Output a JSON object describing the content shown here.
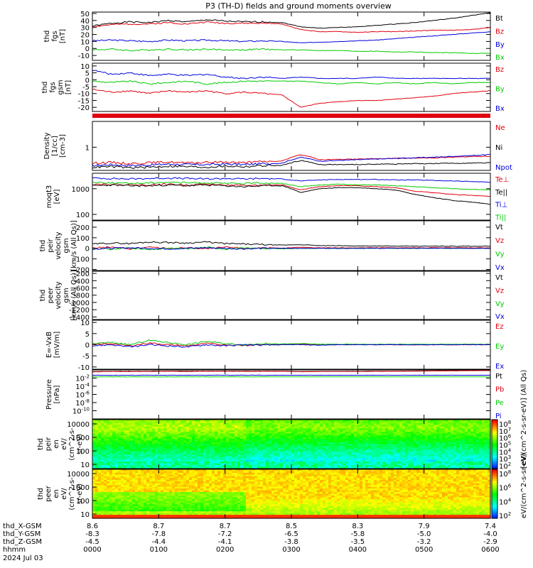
{
  "title": "P3 (TH-D) fields and ground moments overview",
  "colors": {
    "black": "#000000",
    "red": "#e0000e",
    "green": "#00cc00",
    "blue": "#0000dd"
  },
  "chart_data": [
    {
      "id": "fgs",
      "type": "line",
      "ylabel": [
        "thd",
        "fgs",
        "[nT]"
      ],
      "ylim": [
        -17,
        52
      ],
      "yticks": [
        50,
        40,
        30,
        20,
        10,
        0,
        -10
      ],
      "series": [
        {
          "name": "Bt",
          "color": "black",
          "values": [
            32,
            36,
            38,
            37,
            40,
            38,
            41,
            39,
            38,
            38,
            37,
            31,
            29,
            30,
            31,
            33,
            35,
            37,
            40,
            43,
            47,
            51
          ]
        },
        {
          "name": "Bz",
          "color": "red",
          "values": [
            31,
            34,
            35,
            35,
            37,
            35,
            38,
            36,
            36,
            36,
            35,
            27,
            24,
            24,
            23,
            24,
            24,
            25,
            26,
            26,
            27,
            30
          ]
        },
        {
          "name": "By",
          "color": "blue",
          "values": [
            11,
            12,
            11,
            10,
            12,
            11,
            12,
            11,
            10,
            11,
            10,
            8,
            9,
            10,
            11,
            12,
            14,
            16,
            18,
            20,
            22,
            24
          ]
        },
        {
          "name": "Bx",
          "color": "green",
          "values": [
            -2,
            -1,
            -3,
            -2,
            -1,
            -2,
            -1,
            -2,
            -2,
            -1,
            -2,
            -2,
            -3,
            -3,
            -4,
            -4,
            -5,
            -5,
            -6,
            -6,
            -7,
            -7
          ]
        }
      ]
    },
    {
      "id": "fgs-gsm",
      "type": "line",
      "ylabel": [
        "thd",
        "fgs",
        "gsm",
        "[nT]"
      ],
      "ylim": [
        -23,
        12
      ],
      "yticks": [
        10,
        5,
        0,
        -5,
        -10,
        -15,
        -20
      ],
      "series": [
        {
          "name": "Bz",
          "color": "red",
          "values": [
            -7,
            -9,
            -8,
            -10,
            -8,
            -9,
            -8,
            -10,
            -9,
            -10,
            -11,
            -20,
            -17,
            -16,
            -15,
            -15,
            -14,
            -13,
            -12,
            -10,
            -9,
            -8
          ]
        },
        {
          "name": "By",
          "color": "green",
          "values": [
            -1,
            -2,
            -1,
            -3,
            -2,
            -1,
            -3,
            -2,
            -1,
            -1,
            -1,
            -1,
            -2,
            -3,
            -2,
            -3,
            -2,
            -3,
            -2,
            -3,
            -2,
            -2
          ]
        },
        {
          "name": "Bx",
          "color": "blue",
          "values": [
            7,
            4,
            5,
            3,
            4,
            3,
            4,
            2,
            1,
            2,
            1,
            2,
            1,
            1,
            1,
            2,
            1,
            1,
            1,
            1,
            1,
            1
          ]
        }
      ]
    },
    {
      "id": "density",
      "type": "line",
      "ylabel": [
        "Density",
        "[1/cc]",
        "[cm-3]"
      ],
      "ylim": [
        0.2,
        6
      ],
      "yticks": [
        1
      ],
      "log": true,
      "series": [
        {
          "name": "Ne",
          "color": "red",
          "values": [
            0.33,
            0.35,
            0.32,
            0.34,
            0.36,
            0.33,
            0.35,
            0.36,
            0.34,
            0.37,
            0.38,
            0.6,
            0.42,
            0.43,
            0.44,
            0.45,
            0.46,
            0.47,
            0.48,
            0.5,
            0.52,
            0.54
          ]
        },
        {
          "name": "Ni",
          "color": "black",
          "values": [
            0.25,
            0.26,
            0.24,
            0.25,
            0.27,
            0.26,
            0.25,
            0.27,
            0.26,
            0.28,
            0.28,
            0.4,
            0.3,
            0.3,
            0.3,
            0.31,
            0.31,
            0.32,
            0.32,
            0.33,
            0.33,
            0.34
          ]
        },
        {
          "name": "Npot",
          "color": "blue",
          "values": [
            0.28,
            0.3,
            0.28,
            0.29,
            0.31,
            0.3,
            0.3,
            0.31,
            0.3,
            0.32,
            0.33,
            0.5,
            0.38,
            0.4,
            0.42,
            0.44,
            0.46,
            0.48,
            0.5,
            0.53,
            0.56,
            0.6
          ]
        }
      ]
    },
    {
      "id": "temperature",
      "type": "line",
      "ylabel": [
        "moqt3",
        "[eV]"
      ],
      "ylim": [
        60,
        4000
      ],
      "yticks": [
        1000,
        100
      ],
      "log": true,
      "series": [
        {
          "name": "Te⊥",
          "color": "red",
          "values": [
            1500,
            1500,
            1400,
            1400,
            1500,
            1400,
            1500,
            1400,
            1300,
            1400,
            1400,
            900,
            1200,
            1300,
            1300,
            1200,
            1100,
            800,
            700,
            600,
            550,
            500
          ]
        },
        {
          "name": "Te||",
          "color": "black",
          "values": [
            1300,
            1400,
            1300,
            1300,
            1400,
            1300,
            1400,
            1300,
            1200,
            1300,
            1300,
            700,
            1000,
            1100,
            1100,
            1000,
            900,
            600,
            450,
            350,
            300,
            250
          ]
        },
        {
          "name": "Ti⊥",
          "color": "blue",
          "values": [
            2600,
            2500,
            2400,
            2500,
            2600,
            2500,
            2400,
            2500,
            2400,
            2500,
            2400,
            2000,
            2200,
            2300,
            2300,
            2300,
            2200,
            2200,
            2100,
            2000,
            1900,
            1800
          ]
        },
        {
          "name": "Ti||",
          "color": "green",
          "values": [
            1800,
            1700,
            1600,
            1700,
            1800,
            1700,
            1700,
            1600,
            1600,
            1700,
            1600,
            1200,
            1400,
            1500,
            1400,
            1400,
            1300,
            1200,
            1100,
            1000,
            950,
            900
          ]
        }
      ]
    },
    {
      "id": "peir-velocity",
      "type": "line",
      "ylabel": [
        "thd",
        "peir",
        "velocity",
        "gsm",
        "[km/s (All Qs)]"
      ],
      "ylim": [
        -210,
        260
      ],
      "yticks": [
        200,
        100,
        0,
        -100,
        -200
      ],
      "series": [
        {
          "name": "Vt",
          "color": "black",
          "values": [
            40,
            50,
            45,
            60,
            55,
            50,
            60,
            45,
            40,
            35,
            30,
            35,
            25,
            25,
            22,
            22,
            20,
            20,
            20,
            20,
            20,
            20
          ]
        },
        {
          "name": "Vz",
          "color": "red",
          "values": [
            5,
            10,
            -5,
            10,
            0,
            5,
            -5,
            10,
            0,
            5,
            0,
            10,
            5,
            5,
            5,
            5,
            5,
            5,
            5,
            5,
            5,
            5
          ]
        },
        {
          "name": "Vy",
          "color": "green",
          "values": [
            0,
            -10,
            5,
            -15,
            0,
            -5,
            10,
            -5,
            0,
            0,
            -5,
            0,
            0,
            0,
            0,
            0,
            0,
            0,
            0,
            0,
            0,
            0
          ]
        },
        {
          "name": "Vx",
          "color": "blue",
          "values": [
            -5,
            0,
            5,
            0,
            -5,
            0,
            5,
            0,
            -5,
            0,
            0,
            0,
            0,
            0,
            0,
            0,
            0,
            0,
            0,
            0,
            0,
            0
          ]
        }
      ]
    },
    {
      "id": "peer-velocity",
      "type": "line",
      "ylabel": [
        "thd",
        "peer",
        "velocity",
        "gsm",
        "[km/s (All Qs)]"
      ],
      "ylim": [
        -1470,
        -140
      ],
      "yticks": [
        -200,
        -400,
        -600,
        -800,
        -1000,
        -1200,
        -1400
      ],
      "series": [
        {
          "name": "Vt",
          "color": "black",
          "values": []
        },
        {
          "name": "Vz",
          "color": "red",
          "values": []
        },
        {
          "name": "Vy",
          "color": "green",
          "values": []
        },
        {
          "name": "Vx",
          "color": "blue",
          "values": []
        }
      ]
    },
    {
      "id": "efield",
      "type": "line",
      "ylabel": [
        "E=-VxB",
        "[mV/m]"
      ],
      "ylim": [
        -11,
        11
      ],
      "yticks": [
        10,
        5,
        0,
        -5,
        -10
      ],
      "series": [
        {
          "name": "Ez",
          "color": "red",
          "values": [
            0,
            0.5,
            -0.5,
            0.8,
            0,
            -0.5,
            0.5,
            0,
            -0.3,
            0.2,
            0,
            0.3,
            0,
            0,
            0,
            0,
            0,
            0,
            0,
            0,
            0,
            0
          ]
        },
        {
          "name": "Ey",
          "color": "green",
          "values": [
            0.5,
            1,
            0,
            2,
            1,
            0,
            1.5,
            0.5,
            0,
            0.5,
            0.3,
            0.5,
            0.2,
            0.2,
            0.2,
            0.2,
            0.2,
            0.2,
            0.2,
            0.2,
            0.2,
            0.2
          ]
        },
        {
          "name": "Ex",
          "color": "blue",
          "values": [
            -0.5,
            0,
            -1,
            0,
            -0.5,
            -1,
            0,
            -0.5,
            0,
            -0.2,
            0,
            0,
            -0.2,
            0,
            0,
            0,
            0,
            0,
            0,
            0,
            0,
            0
          ]
        }
      ]
    },
    {
      "id": "pressure",
      "type": "line",
      "ylabel": [
        "Pressure",
        "[nPa]"
      ],
      "ylim": [
        1e-12,
        1
      ],
      "yticks": [
        "10^-2",
        "10^-4",
        "10^-6",
        "10^-8",
        "10^-10"
      ],
      "log": true,
      "series": [
        {
          "name": "Pt",
          "color": "black",
          "values": [
            0.4,
            0.45,
            0.45,
            0.45,
            0.5,
            0.5,
            0.5,
            0.5,
            0.5,
            0.5,
            0.5,
            0.4,
            0.45,
            0.45,
            0.45,
            0.5,
            0.5,
            0.55,
            0.6,
            0.65,
            0.7,
            0.75
          ]
        },
        {
          "name": "Pb",
          "color": "red",
          "values": [
            0.35,
            0.4,
            0.4,
            0.4,
            0.45,
            0.4,
            0.45,
            0.45,
            0.45,
            0.45,
            0.45,
            0.35,
            0.4,
            0.4,
            0.4,
            0.45,
            0.45,
            0.5,
            0.55,
            0.6,
            0.65,
            0.7
          ]
        },
        {
          "name": "Pe",
          "color": "green",
          "values": [
            0.02,
            0.02,
            0.02,
            0.02,
            0.02,
            0.02,
            0.02,
            0.02,
            0.02,
            0.02,
            0.02,
            0.02,
            0.02,
            0.02,
            0.02,
            0.02,
            0.02,
            0.02,
            0.02,
            0.02,
            0.02,
            0.02
          ]
        },
        {
          "name": "Pi",
          "color": "blue",
          "values": [
            0.05,
            0.05,
            0.05,
            0.05,
            0.05,
            0.05,
            0.05,
            0.05,
            0.05,
            0.05,
            0.05,
            0.05,
            0.05,
            0.05,
            0.05,
            0.05,
            0.05,
            0.05,
            0.05,
            0.05,
            0.05,
            0.05
          ]
        }
      ]
    },
    {
      "id": "peir-eflux",
      "type": "heatmap",
      "ylabel": [
        "thd",
        "peir",
        "en",
        "eV/",
        "(cm^2-s-",
        "sr-eV)"
      ],
      "yticks": [
        10000,
        1000,
        100,
        10
      ],
      "log": true,
      "colorbar": {
        "label": "[eV/(cm^2-s-sr-eV)] (All Qs)",
        "ticks": [
          "10^8",
          "10^7",
          "10^6",
          "10^5",
          "10^4",
          "10^3",
          "10^2"
        ]
      }
    },
    {
      "id": "peer-eflux",
      "type": "heatmap",
      "ylabel": [
        "thd",
        "peer",
        "en",
        "eV/",
        "(cm^2-s-",
        "sr-eV)"
      ],
      "yticks": [
        10000,
        1000,
        100,
        10
      ],
      "log": true,
      "colorbar": {
        "label": "eV/(cm^2-s-sr-eV)",
        "ticks": [
          "10^8",
          "10^6",
          "10^4",
          "10^2"
        ]
      }
    }
  ],
  "xaxis": {
    "rows": [
      {
        "label": "thd_X-GSM",
        "values": [
          "8.6",
          "8.7",
          "8.7",
          "8.5",
          "8.3",
          "7.9",
          "7.4"
        ]
      },
      {
        "label": "thd_Y-GSM",
        "values": [
          "-8.3",
          "-7.8",
          "-7.2",
          "-6.5",
          "-5.8",
          "-5.0",
          "-4.0"
        ]
      },
      {
        "label": "thd_Z-GSM",
        "values": [
          "-4.5",
          "-4.4",
          "-4.1",
          "-3.8",
          "-3.5",
          "-3.2",
          "-2.9"
        ]
      },
      {
        "label": "hhmm",
        "values": [
          "0000",
          "0100",
          "0200",
          "0300",
          "0400",
          "0500",
          "0600"
        ]
      }
    ],
    "date": "2024 Jul 03"
  }
}
